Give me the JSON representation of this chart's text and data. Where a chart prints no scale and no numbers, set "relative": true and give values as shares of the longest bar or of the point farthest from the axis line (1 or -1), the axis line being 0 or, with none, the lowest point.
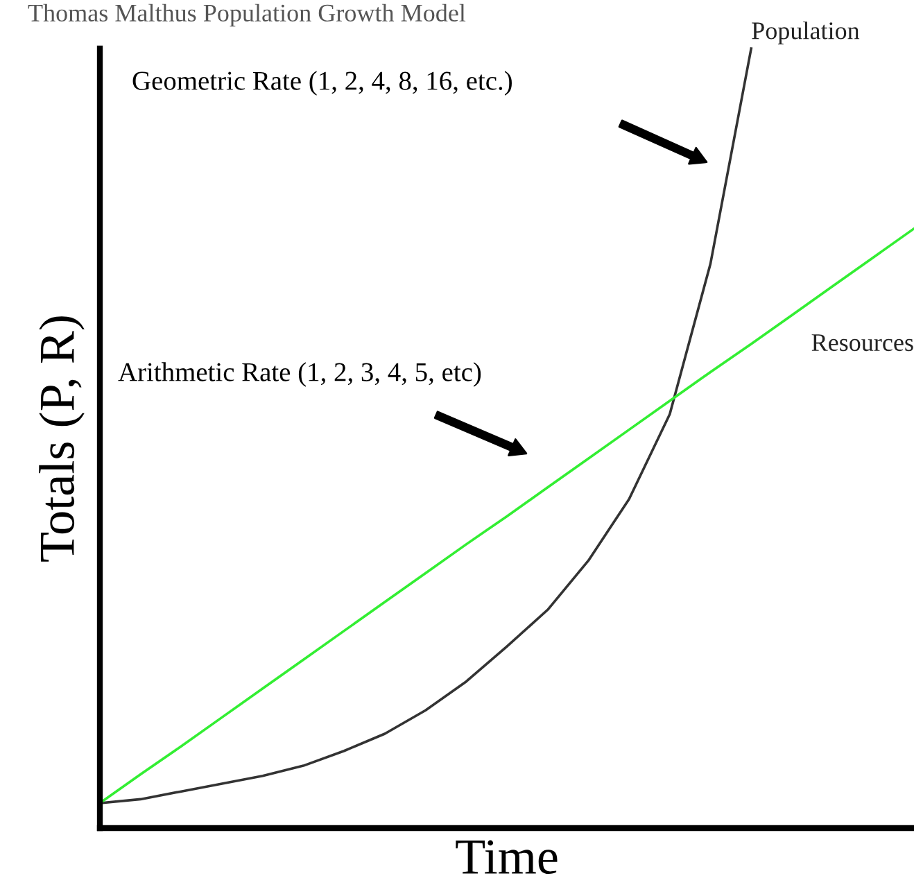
{
  "chart_data": {
    "type": "line",
    "relative": true,
    "title": "Thomas Malthus Population Growth Model",
    "xlabel": "Time",
    "ylabel": "Totals (P, R)",
    "categories": [
      null,
      null,
      null,
      null,
      null,
      null,
      null,
      null,
      null,
      null,
      null,
      null,
      null,
      null,
      null,
      null,
      null,
      null,
      null,
      null,
      null
    ],
    "series": [
      {
        "name": "Population",
        "color": "#333333",
        "values": [
          0.032,
          0.037,
          0.047,
          0.057,
          0.067,
          0.08,
          0.099,
          0.121,
          0.151,
          0.188,
          0.233,
          0.28,
          0.343,
          0.422,
          0.531,
          0.724,
          1,
          null,
          null,
          null,
          null
        ]
      },
      {
        "name": "Resources",
        "color": "#33ee33",
        "values": [
          0.032,
          0.069,
          0.105,
          0.142,
          0.179,
          0.216,
          0.253,
          0.29,
          0.327,
          0.364,
          0.4,
          0.437,
          0.474,
          0.511,
          0.548,
          0.585,
          0.621,
          0.658,
          0.695,
          0.732,
          0.769
        ]
      }
    ],
    "annotations": [
      "Geometric Rate (1, 2, 4, 8, 16, etc.)",
      "Arithmetic Rate (1, 2, 3, 4, 5, etc)"
    ],
    "grid": false,
    "legend": false,
    "marker": "none",
    "line_style": "solid"
  }
}
